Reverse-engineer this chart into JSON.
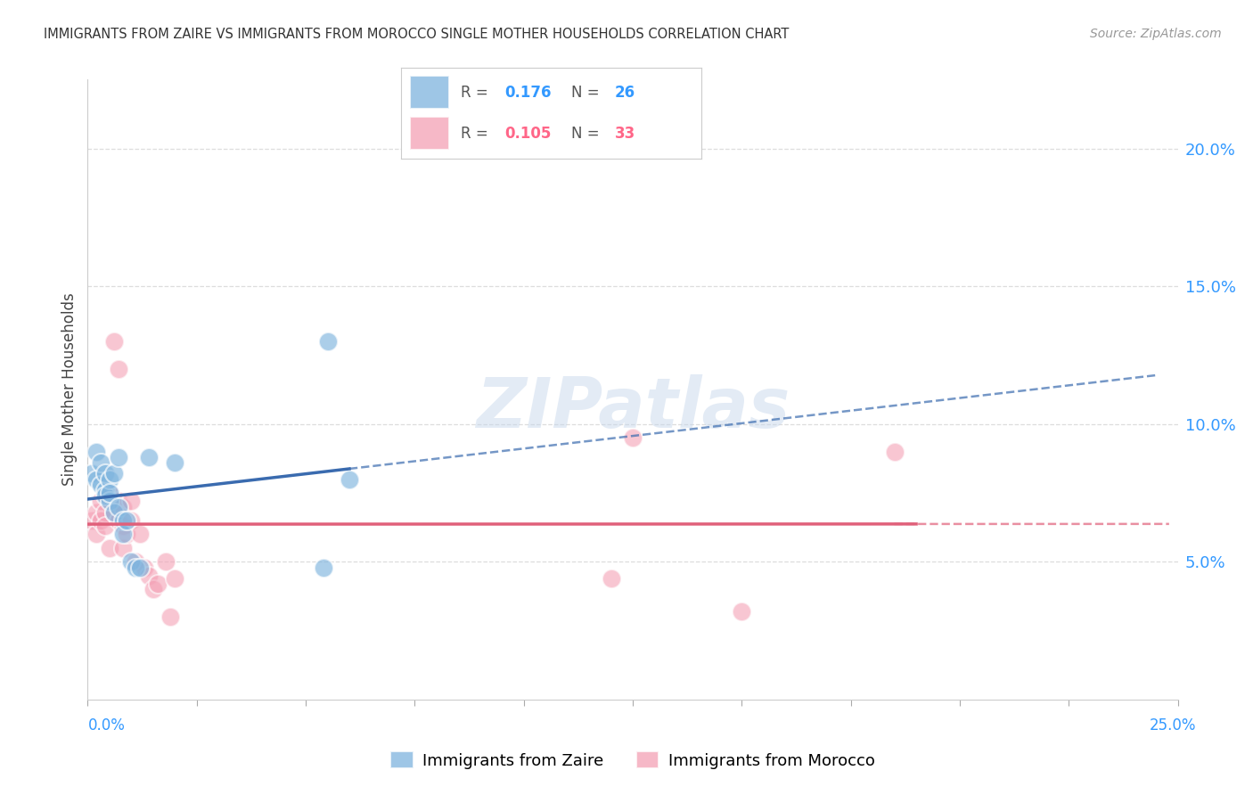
{
  "title": "IMMIGRANTS FROM ZAIRE VS IMMIGRANTS FROM MOROCCO SINGLE MOTHER HOUSEHOLDS CORRELATION CHART",
  "source": "Source: ZipAtlas.com",
  "ylabel": "Single Mother Households",
  "xlim": [
    0.0,
    0.25
  ],
  "ylim": [
    0.0,
    0.225
  ],
  "ytick_values": [
    0.05,
    0.1,
    0.15,
    0.2
  ],
  "ytick_labels": [
    "5.0%",
    "10.0%",
    "15.0%",
    "20.0%"
  ],
  "legend_zaire_r": "0.176",
  "legend_zaire_n": "26",
  "legend_morocco_r": "0.105",
  "legend_morocco_n": "33",
  "zaire_color": "#7EB4DE",
  "morocco_color": "#F4A0B5",
  "zaire_line_color": "#3A6BAF",
  "morocco_line_color": "#E0607A",
  "legend_blue": "#3399FF",
  "legend_pink": "#FF6688",
  "title_color": "#333333",
  "source_color": "#999999",
  "axis_right_color": "#3399FF",
  "axis_bottom_color": "#3399FF",
  "grid_color": "#DDDDDD",
  "zaire_x": [
    0.001,
    0.002,
    0.002,
    0.003,
    0.003,
    0.004,
    0.004,
    0.004,
    0.005,
    0.005,
    0.005,
    0.006,
    0.006,
    0.007,
    0.007,
    0.008,
    0.008,
    0.009,
    0.01,
    0.011,
    0.012,
    0.014,
    0.02,
    0.054,
    0.055,
    0.06
  ],
  "zaire_y": [
    0.082,
    0.09,
    0.08,
    0.078,
    0.086,
    0.076,
    0.082,
    0.074,
    0.08,
    0.072,
    0.075,
    0.082,
    0.068,
    0.088,
    0.07,
    0.065,
    0.06,
    0.065,
    0.05,
    0.048,
    0.048,
    0.088,
    0.086,
    0.048,
    0.13,
    0.08
  ],
  "morocco_x": [
    0.001,
    0.002,
    0.002,
    0.003,
    0.003,
    0.004,
    0.004,
    0.005,
    0.005,
    0.006,
    0.006,
    0.007,
    0.007,
    0.007,
    0.008,
    0.008,
    0.008,
    0.009,
    0.01,
    0.01,
    0.011,
    0.012,
    0.013,
    0.014,
    0.015,
    0.016,
    0.018,
    0.019,
    0.02,
    0.12,
    0.125,
    0.15,
    0.185
  ],
  "morocco_y": [
    0.065,
    0.068,
    0.06,
    0.072,
    0.065,
    0.068,
    0.063,
    0.075,
    0.055,
    0.068,
    0.13,
    0.065,
    0.072,
    0.12,
    0.07,
    0.063,
    0.055,
    0.06,
    0.072,
    0.065,
    0.05,
    0.06,
    0.048,
    0.045,
    0.04,
    0.042,
    0.05,
    0.03,
    0.044,
    0.044,
    0.095,
    0.032,
    0.09
  ]
}
